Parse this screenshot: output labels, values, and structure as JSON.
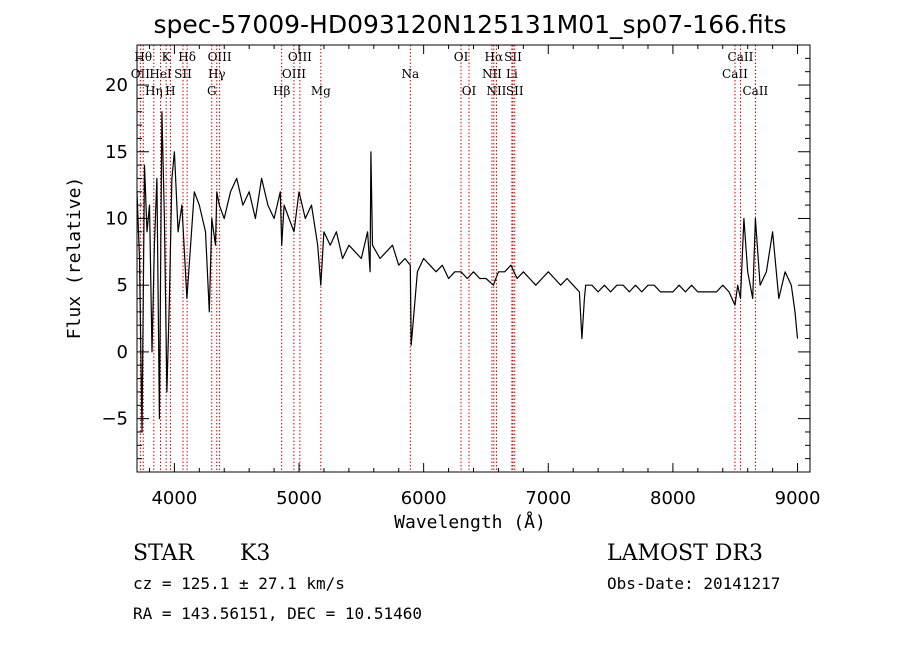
{
  "chart_data": {
    "type": "line",
    "title": "spec-57009-HD093120N125131M01_sp07-166.fits",
    "xlabel": "Wavelength (Å)",
    "ylabel": "Flux (relative)",
    "xlim": [
      3700,
      9100
    ],
    "ylim": [
      -9,
      23
    ],
    "xticks": [
      4000,
      5000,
      6000,
      7000,
      8000,
      9000
    ],
    "yticks": [
      -5,
      0,
      5,
      10,
      15,
      20
    ],
    "grid": false,
    "series": [
      {
        "color": "#000000",
        "x": [
          3700,
          3720,
          3740,
          3760,
          3780,
          3800,
          3820,
          3840,
          3860,
          3880,
          3900,
          3920,
          3940,
          3960,
          3980,
          4000,
          4030,
          4060,
          4100,
          4130,
          4160,
          4200,
          4250,
          4280,
          4300,
          4330,
          4340,
          4360,
          4400,
          4450,
          4500,
          4550,
          4600,
          4650,
          4700,
          4750,
          4800,
          4850,
          4861,
          4880,
          4920,
          4960,
          5000,
          5050,
          5100,
          5150,
          5175,
          5200,
          5250,
          5300,
          5350,
          5400,
          5450,
          5500,
          5550,
          5570,
          5577,
          5590,
          5650,
          5700,
          5750,
          5800,
          5850,
          5893,
          5900,
          5950,
          6000,
          6050,
          6100,
          6150,
          6200,
          6250,
          6300,
          6350,
          6400,
          6450,
          6500,
          6560,
          6600,
          6650,
          6700,
          6750,
          6800,
          6850,
          6900,
          6950,
          7000,
          7050,
          7100,
          7150,
          7200,
          7250,
          7270,
          7290,
          7300,
          7350,
          7400,
          7450,
          7500,
          7550,
          7600,
          7650,
          7700,
          7750,
          7800,
          7850,
          7900,
          7950,
          8000,
          8050,
          8100,
          8150,
          8200,
          8250,
          8300,
          8350,
          8400,
          8450,
          8498,
          8520,
          8542,
          8570,
          8600,
          8640,
          8662,
          8700,
          8750,
          8800,
          8850,
          8900,
          8950,
          8980,
          9000
        ],
        "y": [
          12,
          7,
          -6,
          14,
          9,
          11,
          0,
          8,
          13,
          -5,
          18,
          10,
          -3,
          4,
          13,
          15,
          9,
          11,
          4,
          8,
          12,
          11,
          9,
          3,
          10,
          8,
          12,
          11,
          10,
          12,
          13,
          11,
          12,
          10,
          13,
          11,
          10,
          12,
          8,
          11,
          10,
          9,
          12,
          10,
          11,
          8,
          5,
          9,
          8,
          9,
          7,
          8,
          7.5,
          7,
          9,
          6,
          15,
          8,
          7,
          7.5,
          8,
          6.5,
          7,
          6.5,
          0.5,
          6,
          7,
          6.5,
          6,
          6.5,
          5.5,
          6,
          6,
          5.5,
          6,
          5.5,
          5.5,
          5,
          6,
          6,
          6.5,
          5.5,
          6,
          5.5,
          5,
          5.5,
          6,
          5.5,
          5,
          5.5,
          5,
          4.5,
          1,
          4,
          5,
          5,
          4.5,
          5,
          4.5,
          5,
          5,
          4.5,
          5,
          4.5,
          5,
          5,
          4.5,
          4.5,
          4.5,
          5,
          4.5,
          5,
          4.5,
          4.5,
          4.5,
          4.5,
          5,
          4.5,
          3.5,
          5,
          4,
          10,
          6,
          4,
          10,
          5,
          6,
          9,
          4,
          6,
          5,
          3,
          1
        ]
      }
    ],
    "line_markers": [
      {
        "label": "OII",
        "row": 2,
        "wl": 3727
      },
      {
        "label": "Hθ",
        "row": 1,
        "wl": 3750
      },
      {
        "label": "Hη",
        "row": 3,
        "wl": 3835
      },
      {
        "label": "HeI",
        "row": 2,
        "wl": 3889
      },
      {
        "label": "K",
        "row": 1,
        "wl": 3934
      },
      {
        "label": "H",
        "row": 3,
        "wl": 3968
      },
      {
        "label": "SII",
        "row": 2,
        "wl": 4069
      },
      {
        "label": "Hδ",
        "row": 1,
        "wl": 4102
      },
      {
        "label": "G",
        "row": 3,
        "wl": 4300
      },
      {
        "label": "Hγ",
        "row": 2,
        "wl": 4340
      },
      {
        "label": "OIII",
        "row": 1,
        "wl": 4363
      },
      {
        "label": "Hβ",
        "row": 3,
        "wl": 4861
      },
      {
        "label": "OIII",
        "row": 2,
        "wl": 4959
      },
      {
        "label": "OIII",
        "row": 1,
        "wl": 5007
      },
      {
        "label": "Mg",
        "row": 3,
        "wl": 5175
      },
      {
        "label": "Na",
        "row": 2,
        "wl": 5893
      },
      {
        "label": "OI",
        "row": 1,
        "wl": 6300
      },
      {
        "label": "OI",
        "row": 3,
        "wl": 6364
      },
      {
        "label": "NII",
        "row": 2,
        "wl": 6548
      },
      {
        "label": "Hα",
        "row": 1,
        "wl": 6563
      },
      {
        "label": "NII",
        "row": 3,
        "wl": 6584
      },
      {
        "label": "Li",
        "row": 2,
        "wl": 6708
      },
      {
        "label": "SII",
        "row": 1,
        "wl": 6717
      },
      {
        "label": "SII",
        "row": 3,
        "wl": 6731
      },
      {
        "label": "CaII",
        "row": 2,
        "wl": 8498
      },
      {
        "label": "CaII",
        "row": 1,
        "wl": 8542
      },
      {
        "label": "CaII",
        "row": 3,
        "wl": 8662
      }
    ],
    "marker_color": "#cc0000"
  },
  "info": {
    "object_class": "STAR",
    "subclass": "K3",
    "survey": "LAMOST DR3",
    "cz": "cz = 125.1 ± 27.1 km/s",
    "obs_date": "Obs-Date: 20141217",
    "coords": "RA = 143.56151, DEC =  10.51460"
  }
}
